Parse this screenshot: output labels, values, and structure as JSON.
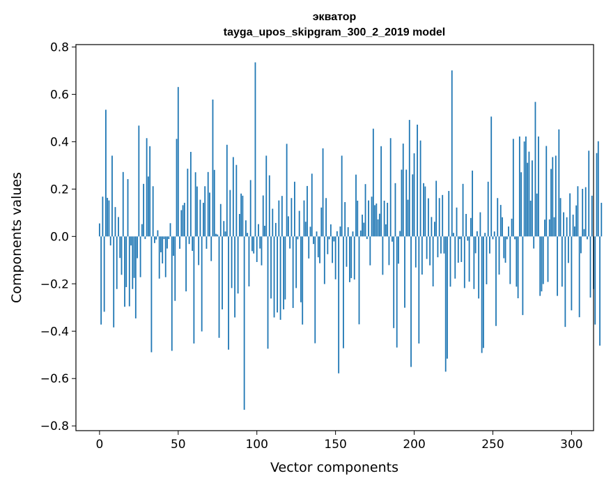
{
  "chart_data": {
    "type": "bar",
    "title_lines": [
      "экватор",
      "tayga_upos_skipgram_300_2_2019 model"
    ],
    "xlabel": "Vector components",
    "ylabel": "Components values",
    "xlim": [
      -15,
      314
    ],
    "ylim": [
      -0.82,
      0.81
    ],
    "xticks": [
      0,
      50,
      100,
      150,
      200,
      250,
      300
    ],
    "xtick_labels": [
      "0",
      "50",
      "100",
      "150",
      "200",
      "250",
      "300"
    ],
    "yticks": [
      0.8,
      0.6,
      0.4,
      0.2,
      0.0,
      -0.2,
      -0.4,
      -0.6,
      -0.8
    ],
    "ytick_labels": [
      "0.8",
      "0.6",
      "0.4",
      "0.2",
      "0.0",
      "−0.2",
      "−0.4",
      "−0.6",
      "−0.8"
    ],
    "grid": false,
    "bar_color": "#1f77b4",
    "values": [
      0.055,
      -0.372,
      0.168,
      -0.318,
      0.535,
      0.163,
      0.152,
      -0.038,
      0.341,
      -0.384,
      0.124,
      -0.222,
      0.082,
      -0.091,
      -0.162,
      0.272,
      -0.297,
      -0.214,
      0.242,
      -0.295,
      -0.038,
      -0.222,
      -0.175,
      -0.346,
      -0.092,
      0.468,
      -0.172,
      0.052,
      0.222,
      -0.011,
      0.415,
      0.253,
      0.381,
      -0.489,
      0.212,
      -0.028,
      -0.013,
      0.026,
      -0.178,
      -0.067,
      -0.114,
      -0.011,
      -0.172,
      -0.051,
      -0.011,
      0.056,
      -0.483,
      -0.082,
      -0.272,
      0.412,
      0.631,
      -0.052,
      0.111,
      0.132,
      0.142,
      -0.232,
      0.286,
      -0.032,
      0.357,
      -0.061,
      -0.452,
      0.271,
      0.211,
      -0.121,
      0.155,
      -0.401,
      0.142,
      0.212,
      -0.052,
      0.272,
      0.185,
      -0.104,
      0.578,
      0.281,
      0.011,
      0.008,
      -0.428,
      0.137,
      -0.308,
      0.065,
      0.021,
      0.387,
      -0.478,
      0.196,
      -0.218,
      0.335,
      -0.342,
      0.302,
      -0.241,
      0.095,
      0.181,
      0.172,
      -0.732,
      0.068,
      0.015,
      -0.211,
      0.238,
      -0.062,
      -0.072,
      0.735,
      -0.108,
      0.052,
      -0.051,
      -0.122,
      0.173,
      0.045,
      0.341,
      -0.474,
      0.258,
      -0.262,
      0.117,
      -0.342,
      0.057,
      -0.321,
      0.152,
      -0.352,
      0.171,
      -0.308,
      -0.266,
      0.391,
      0.085,
      -0.051,
      0.162,
      -0.302,
      0.231,
      -0.218,
      -0.012,
      0.108,
      -0.278,
      -0.372,
      0.152,
      0.062,
      0.213,
      -0.093,
      0.041,
      0.265,
      -0.032,
      -0.451,
      0.021,
      -0.088,
      -0.113,
      0.122,
      0.372,
      -0.201,
      0.162,
      -0.075,
      -0.012,
      0.051,
      -0.112,
      -0.021,
      -0.181,
      0.022,
      -0.578,
      0.042,
      0.341,
      -0.472,
      0.145,
      -0.128,
      0.039,
      -0.193,
      -0.176,
      0.021,
      -0.182,
      0.261,
      0.151,
      -0.371,
      0.025,
      0.092,
      0.058,
      0.221,
      -0.011,
      0.152,
      -0.122,
      0.168,
      0.455,
      0.132,
      0.139,
      0.072,
      0.096,
      0.381,
      -0.162,
      0.151,
      0.051,
      0.142,
      -0.121,
      0.415,
      -0.022,
      -0.387,
      0.225,
      -0.469,
      -0.115,
      0.023,
      0.282,
      0.392,
      -0.301,
      0.282,
      0.155,
      0.492,
      -0.551,
      0.262,
      0.351,
      -0.131,
      0.472,
      -0.452,
      0.405,
      -0.161,
      0.225,
      0.211,
      -0.095,
      0.161,
      -0.122,
      0.082,
      -0.211,
      0.062,
      0.235,
      -0.088,
      0.162,
      -0.072,
      0.175,
      -0.072,
      -0.571,
      -0.516,
      0.192,
      -0.212,
      0.701,
      0.015,
      -0.178,
      0.122,
      -0.111,
      -0.011,
      -0.108,
      0.222,
      -0.218,
      0.095,
      -0.018,
      -0.191,
      0.078,
      0.278,
      -0.222,
      -0.071,
      0.022,
      -0.262,
      0.102,
      -0.492,
      -0.471,
      0.015,
      -0.202,
      0.231,
      -0.072,
      0.506,
      -0.012,
      0.021,
      -0.378,
      0.162,
      -0.161,
      0.133,
      0.081,
      -0.092,
      -0.111,
      -0.012,
      0.042,
      -0.201,
      0.075,
      0.412,
      -0.012,
      -0.212,
      -0.261,
      0.422,
      0.271,
      -0.332,
      0.401,
      0.422,
      0.311,
      0.358,
      0.151,
      0.321,
      -0.051,
      0.568,
      0.181,
      0.422,
      -0.251,
      -0.232,
      -0.201,
      0.071,
      0.382,
      -0.192,
      0.072,
      0.285,
      0.335,
      0.081,
      0.341,
      -0.251,
      0.452,
      0.162,
      -0.212,
      0.102,
      -0.382,
      0.081,
      -0.112,
      0.182,
      -0.312,
      0.092,
      0.042,
      0.131,
      0.212,
      -0.341,
      -0.071,
      0.201,
      0.031,
      0.208,
      -0.012,
      0.362,
      -0.258,
      0.172,
      -0.222,
      -0.372,
      0.352,
      0.402,
      -0.461,
      0.142
    ]
  }
}
